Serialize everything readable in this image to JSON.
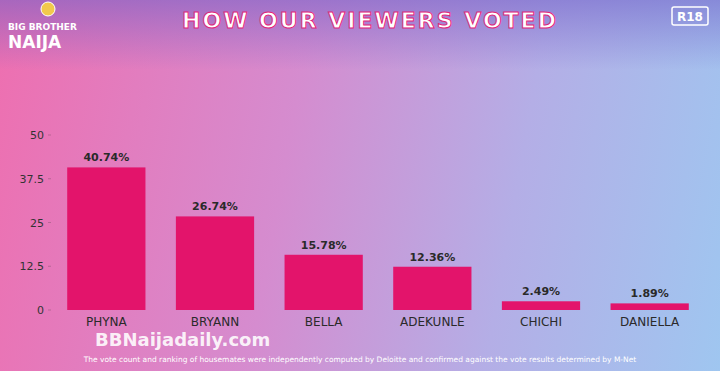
{
  "chart_data": {
    "type": "bar",
    "title": "HOW OUR VIEWERS VOTED",
    "logo": [
      "BIG BROTHER",
      "NAIJA"
    ],
    "badge": "R18",
    "watermark": "BBNaijadaily.com",
    "footnote": "The vote count and ranking of housemates were independently computed by Deloitte and confirmed against the vote results determined by M-Net",
    "categories": [
      "PHYNA",
      "BRYANN",
      "BELLA",
      "ADEKUNLE",
      "CHICHI",
      "DANIELLA"
    ],
    "values": [
      40.74,
      26.74,
      15.78,
      12.36,
      2.49,
      1.89
    ],
    "value_labels": [
      "40.74%",
      "26.74%",
      "15.78%",
      "12.36%",
      "2.49%",
      "1.89%"
    ],
    "color": "#e3146b",
    "ylim": [
      0,
      50
    ],
    "yticks": [
      0,
      12.5,
      25,
      37.5,
      50
    ],
    "grid": false,
    "data_labels": true
  }
}
